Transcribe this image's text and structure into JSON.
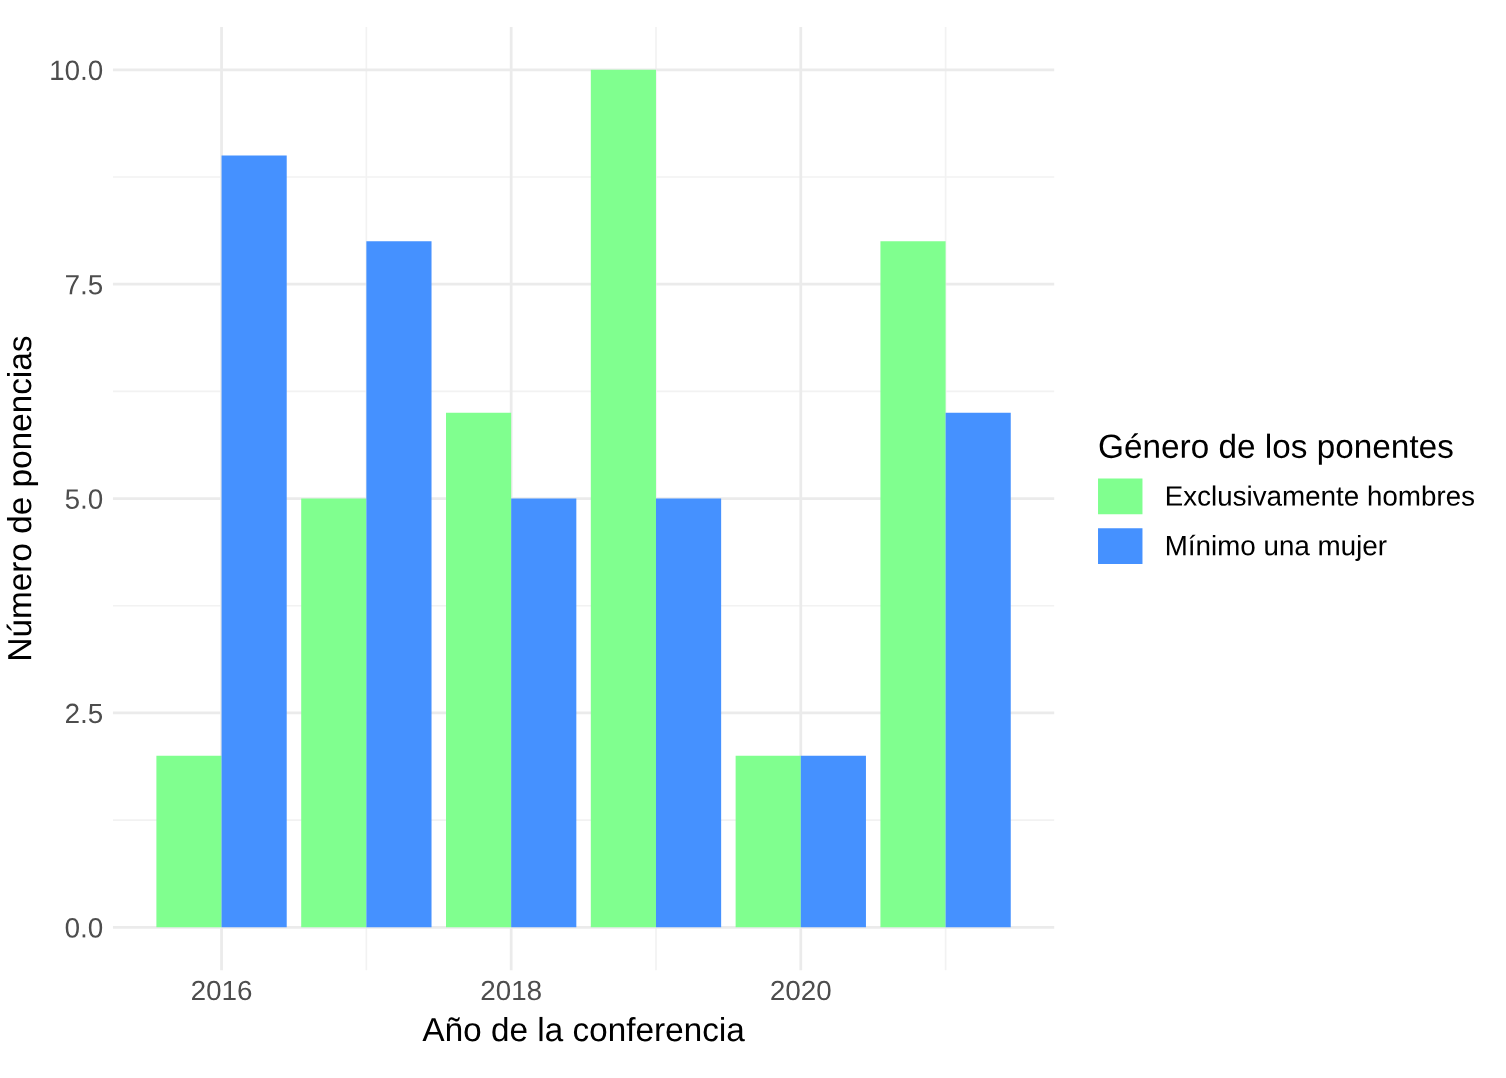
{
  "chart_data": {
    "type": "bar",
    "xlabel": "Año de la conferencia",
    "ylabel": "Número de ponencias",
    "legend_title": "Género de los ponentes",
    "x": [
      2016,
      2017,
      2018,
      2019,
      2020,
      2021
    ],
    "series": [
      {
        "name": "Exclusivamente hombres",
        "color": "#80ff8f",
        "values": [
          2,
          5,
          6,
          10,
          2,
          8
        ]
      },
      {
        "name": "Mínimo una mujer",
        "color": "#4591ff",
        "values": [
          9,
          8,
          5,
          5,
          2,
          6
        ]
      }
    ],
    "xlim": [
      2015.25,
      2021.75
    ],
    "xticks": [
      2016,
      2018,
      2020
    ],
    "ylim": [
      -0.5,
      10.5
    ],
    "yticks": [
      {
        "value": 0,
        "label": "0.0"
      },
      {
        "value": 2.5,
        "label": "2.5"
      },
      {
        "value": 5,
        "label": "5.0"
      },
      {
        "value": 7.5,
        "label": "7.5"
      },
      {
        "value": 10,
        "label": "10.0"
      }
    ],
    "grid": true,
    "legend": "right"
  }
}
